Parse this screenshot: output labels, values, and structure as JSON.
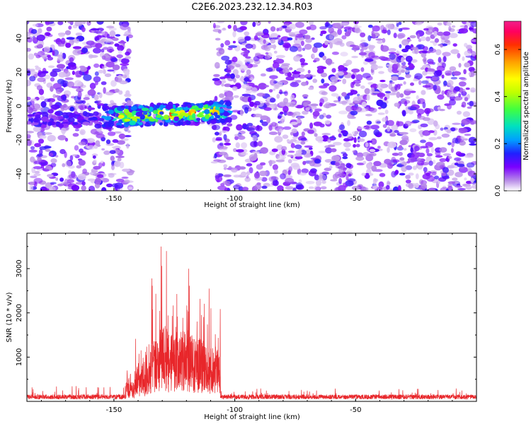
{
  "figure": {
    "title": "C2E6.2023.232.12.34.R03"
  },
  "colors": {
    "series_line": "#e8262a",
    "spectrogram_low": "#ecdcfa",
    "spectrogram_mid": "#7a1fe0",
    "colorbar_stops": [
      "#ffffff",
      "#b98ee8",
      "#7a00ff",
      "#2020ff",
      "#00a0ff",
      "#00e0c0",
      "#40ff40",
      "#c0ff00",
      "#ffff00",
      "#ffa000",
      "#ff3000",
      "#ff0060",
      "#f0208a"
    ]
  },
  "chart_data": [
    {
      "type": "heatmap",
      "xlabel": "Height of straight line (km)",
      "ylabel": "Frequency (Hz)",
      "xlim": [
        -186,
        0
      ],
      "ylim": [
        -50,
        50
      ],
      "xticks": [
        -150,
        -100,
        -50
      ],
      "yticks": [
        -40,
        -20,
        0,
        20,
        40
      ],
      "colorbar": {
        "label": "Normalized spectral amplitude",
        "range": [
          0,
          0.72
        ],
        "ticks": [
          0.0,
          0.2,
          0.4,
          0.6
        ]
      },
      "gap_regions_km": [
        [
          -143,
          -109
        ]
      ],
      "signal_band": {
        "x_range": [
          -155,
          -102
        ],
        "freq_center": -5,
        "freq_halfwidth": 6,
        "peak_amplitude": 0.68
      },
      "low_band": {
        "x_range": [
          -186,
          -155
        ],
        "freq_center": -8,
        "freq_halfwidth": 4,
        "peak_amplitude": 0.15
      },
      "background_amplitude_range": [
        0.02,
        0.15
      ]
    },
    {
      "type": "line",
      "xlabel": "Height of straight line (km)",
      "ylabel": "SNR (10 * v/v)",
      "xlim": [
        -186,
        0
      ],
      "ylim": [
        0,
        3800
      ],
      "xticks": [
        -150,
        -100,
        -50
      ],
      "yticks": [
        1000,
        2000,
        3000
      ],
      "series": [
        {
          "segments": [
            {
              "x_range": [
                -186,
                -145
              ],
              "mean": 120,
              "peak": 350
            },
            {
              "x_range": [
                -145,
                -141
              ],
              "mean": 350,
              "peak": 700
            },
            {
              "x_range": [
                -141,
                -135
              ],
              "mean": 700,
              "peak": 1500
            },
            {
              "x_range": [
                -135,
                -131
              ],
              "mean": 1100,
              "peak": 2800
            },
            {
              "x_range": [
                -131,
                -128
              ],
              "mean": 1400,
              "peak": 3800
            },
            {
              "x_range": [
                -128,
                -120
              ],
              "mean": 1300,
              "peak": 2500
            },
            {
              "x_range": [
                -120,
                -113
              ],
              "mean": 1200,
              "peak": 3000
            },
            {
              "x_range": [
                -113,
                -106
              ],
              "mean": 1000,
              "peak": 2600
            },
            {
              "x_range": [
                -106,
                0
              ],
              "mean": 120,
              "peak": 300
            }
          ]
        }
      ]
    }
  ]
}
